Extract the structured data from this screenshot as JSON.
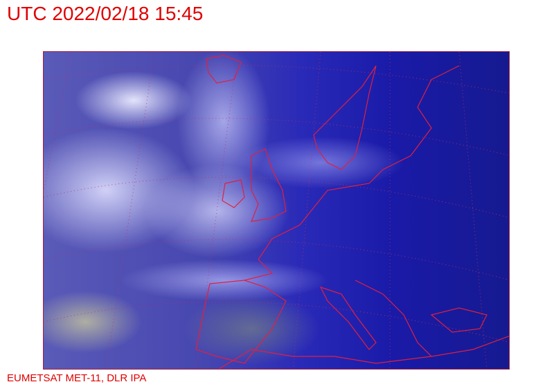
{
  "title": "UTC 2022/02/18 15:45",
  "credit": "EUMETSAT MET-11, DLR IPA",
  "colors": {
    "text": "#e00000",
    "coastline": "#e02040",
    "grid": "#c03060"
  },
  "map": {
    "type": "satellite-image",
    "region": "Europe / North Atlantic",
    "overlays": [
      "coastlines",
      "lat-lon-grid"
    ]
  }
}
